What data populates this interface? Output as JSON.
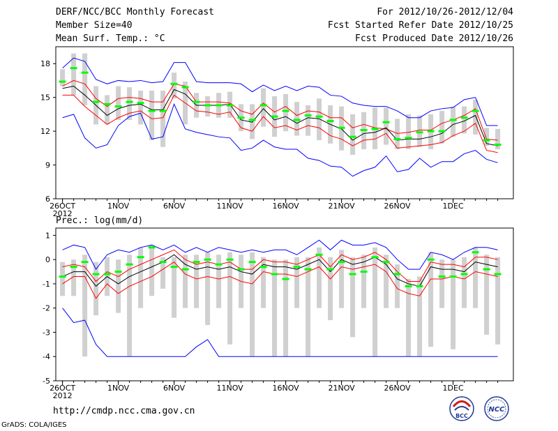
{
  "header": {
    "title": "DERF/NCC/BCC Monthly Forecast",
    "member": "Member Size=40",
    "variable": "Mean Surf. Temp.: °C",
    "forecast_range": "For 2012/10/26-2012/12/04",
    "start_date": "Fcst Started Refer Date 2012/10/25",
    "produced_date": "Fcst Produced Date 2012/10/26"
  },
  "footer": {
    "url": "http://cmdp.ncc.cma.gov.cn",
    "grads": "GrADS: COLA/IGES",
    "logo_bcc": "BCC",
    "logo_ncc": "NCC"
  },
  "colors": {
    "envelope": "#0000ff",
    "spread": "#ff0000",
    "mean": "#000000",
    "median": "#00ff00",
    "box": "#d0d0d0",
    "axis": "#000000"
  },
  "chart_data": [
    {
      "type": "line",
      "title": "",
      "ylabel": "Mean Surf. Temp.: °C",
      "ylim": [
        6,
        19.5
      ],
      "yticks": [
        "6",
        "9",
        "12",
        "15",
        "18"
      ],
      "ytick_values": [
        6,
        9,
        12,
        15,
        18
      ],
      "xticks": [
        "26OCT",
        "1NOV",
        "6NOV",
        "11NOV",
        "16NOV",
        "21NOV",
        "26NOV",
        "1DEC"
      ],
      "xtick_days": [
        1,
        6,
        11,
        16,
        21,
        26,
        31,
        36
      ],
      "xsub": "2012",
      "days": [
        1,
        2,
        3,
        4,
        5,
        6,
        7,
        8,
        9,
        10,
        11,
        12,
        13,
        14,
        15,
        16,
        17,
        18,
        19,
        20,
        21,
        22,
        23,
        24,
        25,
        26,
        27,
        28,
        29,
        30,
        31,
        32,
        33,
        34,
        35,
        36,
        37,
        38,
        39,
        40
      ],
      "series": [
        {
          "name": "max",
          "values": [
            17.6,
            18.5,
            18.2,
            16.6,
            16.2,
            16.5,
            16.4,
            16.5,
            16.3,
            16.4,
            18.1,
            18.1,
            16.4,
            16.3,
            16.3,
            16.3,
            16.2,
            15.5,
            16.1,
            15.6,
            16.0,
            15.6,
            16.0,
            15.9,
            15.2,
            15.1,
            14.5,
            14.3,
            14.2,
            14.2,
            13.8,
            13.2,
            13.2,
            13.8,
            14.0,
            14.1,
            14.8,
            15.0,
            12.5,
            12.5
          ]
        },
        {
          "name": "upper",
          "values": [
            16.0,
            16.5,
            16.2,
            14.9,
            14.2,
            14.9,
            15.0,
            14.9,
            14.6,
            14.6,
            16.2,
            16.0,
            14.6,
            14.6,
            14.6,
            14.5,
            13.8,
            13.5,
            14.5,
            13.7,
            14.2,
            13.4,
            13.8,
            13.7,
            13.2,
            13.2,
            12.3,
            12.6,
            12.3,
            12.2,
            11.8,
            11.9,
            12.1,
            12.1,
            12.7,
            13.0,
            13.4,
            14.0,
            11.3,
            11.2
          ]
        },
        {
          "name": "mean",
          "values": [
            15.8,
            16.0,
            15.2,
            14.3,
            13.4,
            14.0,
            14.3,
            14.4,
            13.9,
            13.9,
            15.7,
            15.3,
            14.3,
            14.3,
            14.3,
            14.4,
            13.0,
            12.8,
            14.0,
            13.0,
            13.3,
            12.7,
            13.2,
            13.1,
            12.6,
            12.2,
            11.2,
            11.8,
            11.9,
            12.3,
            11.2,
            11.3,
            11.3,
            11.5,
            11.8,
            12.6,
            12.9,
            13.4,
            10.9,
            10.7
          ]
        },
        {
          "name": "lower",
          "values": [
            15.2,
            15.2,
            14.2,
            13.4,
            12.6,
            13.2,
            13.6,
            13.8,
            13.1,
            13.2,
            15.2,
            14.5,
            13.8,
            13.7,
            13.5,
            13.7,
            12.3,
            12.0,
            13.3,
            12.3,
            12.5,
            12.1,
            12.5,
            12.3,
            11.6,
            11.3,
            10.7,
            11.2,
            11.3,
            11.8,
            10.5,
            10.6,
            10.7,
            10.8,
            11.0,
            11.6,
            12.0,
            12.7,
            10.3,
            10.1
          ]
        },
        {
          "name": "min",
          "values": [
            13.2,
            13.5,
            11.4,
            10.5,
            10.8,
            12.5,
            13.3,
            13.6,
            11.3,
            11.5,
            14.4,
            12.2,
            11.9,
            11.7,
            11.5,
            11.4,
            10.3,
            10.5,
            11.2,
            10.6,
            10.4,
            10.4,
            9.6,
            9.4,
            8.9,
            8.8,
            8.0,
            8.5,
            8.8,
            9.8,
            8.4,
            8.6,
            9.6,
            8.8,
            9.3,
            9.3,
            10.0,
            10.3,
            9.5,
            9.2
          ]
        },
        {
          "name": "median",
          "values": [
            16.4,
            17.6,
            17.2,
            14.6,
            14.4,
            14.2,
            14.6,
            14.5,
            13.8,
            13.8,
            16.2,
            15.9,
            14.6,
            14.3,
            14.3,
            14.3,
            13.2,
            13.0,
            14.3,
            13.3,
            13.8,
            13.0,
            13.4,
            13.3,
            12.9,
            12.3,
            11.5,
            12.1,
            12.2,
            12.8,
            11.3,
            11.4,
            11.9,
            12.0,
            12.0,
            13.0,
            13.2,
            13.8,
            11.2,
            10.8
          ]
        },
        {
          "name": "box_hi",
          "values": [
            17.5,
            18.9,
            18.9,
            16.0,
            15.2,
            16.0,
            15.9,
            15.6,
            15.6,
            15.6,
            17.2,
            16.4,
            15.4,
            15.1,
            15.4,
            15.5,
            14.4,
            14.4,
            15.8,
            15.1,
            15.3,
            14.6,
            14.3,
            14.9,
            14.3,
            14.2,
            13.5,
            13.7,
            14.1,
            14.1,
            13.1,
            13.5,
            13.4,
            13.5,
            13.8,
            14.2,
            14.2,
            14.8,
            12.3,
            12.2
          ]
        },
        {
          "name": "box_lo",
          "values": [
            16.0,
            15.2,
            14.3,
            12.6,
            12.6,
            13.0,
            13.0,
            12.6,
            11.2,
            10.6,
            14.9,
            12.6,
            13.2,
            13.3,
            13.2,
            13.2,
            12.0,
            11.3,
            12.4,
            11.5,
            12.0,
            11.6,
            11.6,
            11.2,
            10.9,
            10.3,
            9.9,
            10.4,
            10.4,
            10.8,
            10.4,
            10.4,
            10.6,
            10.4,
            10.9,
            11.5,
            11.8,
            11.7,
            10.7,
            10.4
          ]
        }
      ]
    },
    {
      "type": "line",
      "title": "",
      "ylabel": "Prec.: log(mm/d)",
      "ylim": [
        -5,
        1.3
      ],
      "yticks": [
        "-5",
        "-4",
        "-3",
        "-2",
        "-1",
        "0",
        "1"
      ],
      "ytick_values": [
        -5,
        -4,
        -3,
        -2,
        -1,
        0,
        1
      ],
      "xticks": [
        "26OCT",
        "1NOV",
        "6NOV",
        "11NOV",
        "16NOV",
        "21NOV",
        "26NOV",
        "1DEC"
      ],
      "xtick_days": [
        1,
        6,
        11,
        16,
        21,
        26,
        31,
        36
      ],
      "xsub": "2012",
      "days": [
        1,
        2,
        3,
        4,
        5,
        6,
        7,
        8,
        9,
        10,
        11,
        12,
        13,
        14,
        15,
        16,
        17,
        18,
        19,
        20,
        21,
        22,
        23,
        24,
        25,
        26,
        27,
        28,
        29,
        30,
        31,
        32,
        33,
        34,
        35,
        36,
        37,
        38,
        39,
        40
      ],
      "series": [
        {
          "name": "max",
          "values": [
            0.4,
            0.6,
            0.5,
            -0.4,
            0.2,
            0.4,
            0.3,
            0.5,
            0.6,
            0.4,
            0.6,
            0.3,
            0.5,
            0.3,
            0.5,
            0.4,
            0.3,
            0.4,
            0.3,
            0.4,
            0.4,
            0.2,
            0.5,
            0.8,
            0.4,
            0.8,
            0.6,
            0.6,
            0.7,
            0.5,
            0.0,
            -0.4,
            -0.4,
            0.3,
            0.2,
            0.0,
            0.3,
            0.5,
            0.5,
            0.4
          ]
        },
        {
          "name": "upper",
          "values": [
            -0.3,
            -0.2,
            -0.3,
            -0.9,
            -0.5,
            -0.7,
            -0.4,
            -0.2,
            0.0,
            0.2,
            0.4,
            0.0,
            -0.2,
            -0.1,
            -0.2,
            -0.1,
            -0.4,
            -0.4,
            0.0,
            -0.1,
            -0.1,
            -0.2,
            0.0,
            0.2,
            -0.3,
            0.2,
            0.0,
            0.1,
            0.3,
            0.0,
            -0.5,
            -0.9,
            -0.9,
            -0.1,
            -0.2,
            -0.2,
            -0.3,
            0.1,
            0.1,
            0.0
          ]
        },
        {
          "name": "mean",
          "values": [
            -0.7,
            -0.5,
            -0.5,
            -1.1,
            -0.7,
            -1.0,
            -0.7,
            -0.5,
            -0.3,
            -0.1,
            0.2,
            -0.2,
            -0.4,
            -0.3,
            -0.4,
            -0.3,
            -0.5,
            -0.6,
            -0.2,
            -0.3,
            -0.3,
            -0.4,
            -0.2,
            0.0,
            -0.5,
            0.0,
            -0.2,
            -0.1,
            0.1,
            -0.2,
            -0.8,
            -1.0,
            -1.1,
            -0.3,
            -0.4,
            -0.4,
            -0.5,
            -0.1,
            -0.2,
            -0.3
          ]
        },
        {
          "name": "lower",
          "values": [
            -1.0,
            -0.7,
            -0.7,
            -1.6,
            -1.0,
            -1.4,
            -1.1,
            -0.9,
            -0.7,
            -0.4,
            -0.1,
            -0.6,
            -0.8,
            -0.7,
            -0.8,
            -0.7,
            -0.9,
            -1.0,
            -0.5,
            -0.6,
            -0.6,
            -0.7,
            -0.5,
            -0.3,
            -0.8,
            -0.3,
            -0.4,
            -0.3,
            -0.2,
            -0.5,
            -1.2,
            -1.4,
            -1.5,
            -0.8,
            -0.8,
            -0.7,
            -0.8,
            -0.5,
            -0.6,
            -0.7
          ]
        },
        {
          "name": "min",
          "values": [
            -2.0,
            -2.6,
            -2.5,
            -3.5,
            -4.0,
            -4.0,
            -4.0,
            -4.0,
            -4.0,
            -4.0,
            -4.0,
            -4.0,
            -3.6,
            -3.3,
            -4.0,
            -4.0,
            -4.0,
            -4.0,
            -4.0,
            -4.0,
            -4.0,
            -4.0,
            -4.0,
            -4.0,
            -4.0,
            -4.0,
            -4.0,
            -4.0,
            -4.0,
            -4.0,
            -4.0,
            -4.0,
            -4.0,
            -4.0,
            -4.0,
            -4.0,
            -4.0,
            -4.0,
            -4.0,
            -4.0
          ]
        },
        {
          "name": "median",
          "values": [
            -0.7,
            -0.3,
            -0.1,
            -0.6,
            -0.6,
            -0.5,
            -0.2,
            0.1,
            0.5,
            -0.1,
            -0.3,
            -0.4,
            -0.1,
            0.0,
            -0.2,
            0.0,
            -0.4,
            -0.1,
            -0.3,
            -0.6,
            -0.8,
            -0.3,
            -0.4,
            0.2,
            -0.4,
            -0.1,
            -0.6,
            -0.5,
            0.1,
            -0.1,
            -0.6,
            -1.1,
            -1.1,
            0.0,
            -0.7,
            -0.7,
            -0.6,
            0.3,
            -0.4,
            -0.6
          ]
        },
        {
          "name": "box_hi",
          "values": [
            -0.1,
            0.0,
            0.2,
            -0.1,
            0.1,
            0.0,
            0.2,
            0.5,
            0.6,
            0.1,
            0.1,
            0.2,
            0.2,
            0.3,
            0.2,
            0.3,
            0.2,
            0.3,
            0.1,
            0.0,
            0.0,
            0.1,
            0.1,
            0.5,
            0.1,
            0.4,
            0.1,
            0.2,
            0.5,
            0.2,
            -0.2,
            -0.8,
            -0.7,
            0.3,
            0.0,
            0.0,
            0.1,
            0.5,
            0.2,
            0.1
          ]
        },
        {
          "name": "box_lo",
          "values": [
            -1.5,
            -1.5,
            -4.0,
            -2.3,
            -1.5,
            -2.2,
            -4.0,
            -2.0,
            -1.5,
            -1.2,
            -2.4,
            -2.0,
            -2.0,
            -2.7,
            -2.0,
            -3.5,
            -2.0,
            -4.0,
            -2.0,
            -4.0,
            -4.0,
            -2.0,
            -4.0,
            -2.0,
            -2.5,
            -2.0,
            -3.2,
            -2.0,
            -4.0,
            -2.0,
            -2.0,
            -4.0,
            -4.0,
            -3.6,
            -2.0,
            -3.7,
            -2.0,
            -2.0,
            -3.1,
            -3.5
          ]
        }
      ]
    }
  ]
}
